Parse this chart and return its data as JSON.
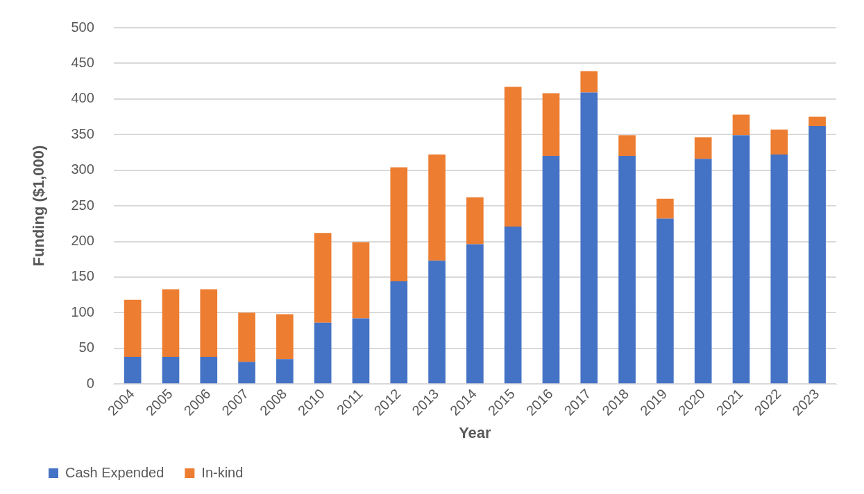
{
  "chart_data": {
    "type": "bar",
    "stacked": true,
    "xlabel": "Year",
    "ylabel": "Funding ($1,000)",
    "categories": [
      "2004",
      "2005",
      "2006",
      "2007",
      "2008",
      "2010",
      "2011",
      "2012",
      "2013",
      "2014",
      "2015",
      "2016",
      "2017",
      "2018",
      "2019",
      "2020",
      "2021",
      "2022",
      "2023"
    ],
    "series": [
      {
        "name": "Cash Expended",
        "color": "#4472c4",
        "values": [
          38,
          38,
          38,
          31,
          35,
          86,
          92,
          144,
          173,
          196,
          221,
          320,
          409,
          320,
          232,
          316,
          349,
          322,
          362
        ]
      },
      {
        "name": "In-kind",
        "color": "#ed7d31",
        "values": [
          80,
          95,
          95,
          69,
          63,
          126,
          107,
          160,
          149,
          66,
          196,
          88,
          30,
          29,
          28,
          30,
          29,
          35,
          13
        ]
      }
    ],
    "ylim": [
      0,
      500
    ],
    "yticks": [
      0,
      50,
      100,
      150,
      200,
      250,
      300,
      350,
      400,
      450,
      500
    ],
    "grid": "y",
    "legend": "bottom left"
  }
}
